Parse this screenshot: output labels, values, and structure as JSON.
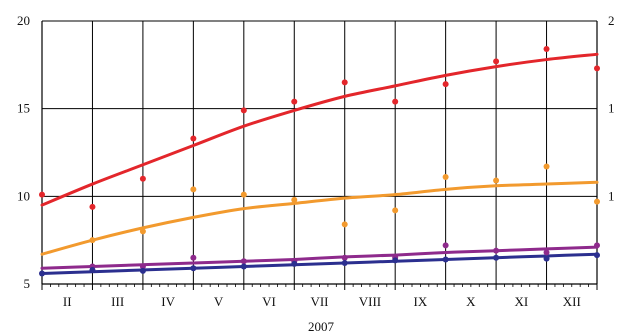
{
  "chart_data": {
    "type": "line",
    "xlabel": "2007",
    "ylabel": "",
    "ylim": [
      5,
      20
    ],
    "yticks": [
      "5",
      "10",
      "15",
      "20"
    ],
    "yticks_right": [
      "1",
      "1",
      "2"
    ],
    "grid": true,
    "x_boundaries": [
      1,
      2,
      3,
      4,
      5,
      6,
      7,
      8,
      9,
      10,
      11,
      12
    ],
    "categories": [
      "II",
      "III",
      "IV",
      "V",
      "VI",
      "VII",
      "VIII",
      "IX",
      "X",
      "XI",
      "XII"
    ],
    "series": [
      {
        "color": "#e3262b",
        "points_x": [
          1,
          2,
          3,
          4,
          5,
          6,
          7,
          8,
          9,
          10,
          11,
          12
        ],
        "points_y": [
          10.1,
          9.4,
          11.0,
          13.3,
          14.9,
          15.4,
          16.5,
          15.4,
          16.4,
          17.7,
          18.4,
          17.3
        ],
        "fit_x": [
          1,
          2,
          3,
          4,
          5,
          6,
          7,
          8,
          9,
          10,
          11,
          12
        ],
        "fit_y": [
          9.5,
          10.7,
          11.8,
          12.9,
          14.0,
          14.9,
          15.7,
          16.3,
          16.9,
          17.4,
          17.8,
          18.1
        ]
      },
      {
        "color": "#f29a2e",
        "points_x": [
          2,
          3,
          4,
          5,
          6,
          7,
          8,
          9,
          10,
          11,
          12
        ],
        "points_y": [
          7.5,
          8.0,
          10.4,
          10.1,
          9.8,
          8.4,
          9.2,
          11.1,
          10.9,
          11.7,
          9.7
        ],
        "fit_x": [
          1,
          2,
          3,
          4,
          5,
          6,
          7,
          8,
          9,
          10,
          11,
          12
        ],
        "fit_y": [
          6.7,
          7.5,
          8.2,
          8.8,
          9.3,
          9.6,
          9.9,
          10.1,
          10.4,
          10.6,
          10.7,
          10.8
        ]
      },
      {
        "color": "#8e2a8c",
        "points_x": [
          2,
          3,
          4,
          5,
          6,
          7,
          8,
          9,
          10,
          11,
          12
        ],
        "points_y": [
          6.0,
          6.0,
          6.5,
          6.3,
          6.3,
          6.5,
          6.5,
          7.2,
          6.9,
          6.8,
          7.2
        ],
        "fit_x": [
          1,
          2,
          3,
          4,
          5,
          6,
          7,
          8,
          9,
          10,
          11,
          12
        ],
        "fit_y": [
          5.9,
          6.0,
          6.1,
          6.2,
          6.3,
          6.4,
          6.55,
          6.65,
          6.8,
          6.9,
          7.0,
          7.1
        ]
      },
      {
        "color": "#2b2f8f",
        "points_x": [
          1,
          2,
          3,
          4,
          5,
          6,
          7,
          8,
          9,
          10,
          11,
          12
        ],
        "points_y": [
          5.6,
          5.8,
          5.75,
          5.9,
          6.0,
          6.15,
          6.2,
          6.35,
          6.4,
          6.5,
          6.45,
          6.65
        ],
        "fit_x": [
          1,
          2,
          3,
          4,
          5,
          6,
          7,
          8,
          9,
          10,
          11,
          12
        ],
        "fit_y": [
          5.6,
          5.7,
          5.8,
          5.9,
          6.0,
          6.1,
          6.2,
          6.3,
          6.4,
          6.5,
          6.6,
          6.7
        ]
      }
    ]
  }
}
